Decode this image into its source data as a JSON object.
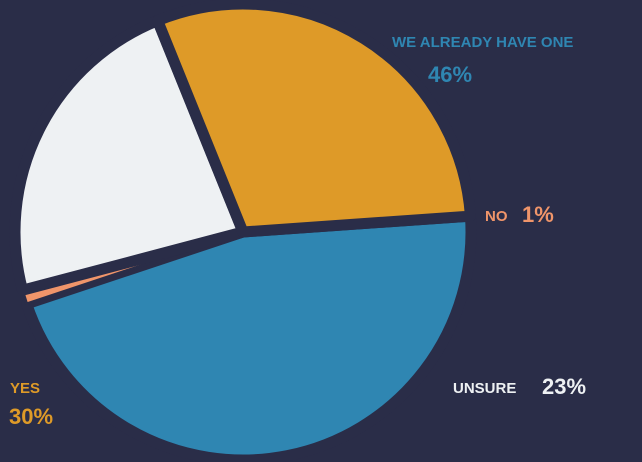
{
  "colors": {
    "background": "#2a2d48",
    "we_already_have_one": "#2f86b2",
    "no": "#f0956a",
    "unsure": "#eef1f3",
    "yes": "#de9a28"
  },
  "chart_data": {
    "type": "pie",
    "title": "",
    "slices": [
      {
        "label": "WE ALREADY HAVE ONE",
        "value": 46,
        "display": "46%",
        "color": "#2f86b2"
      },
      {
        "label": "NO",
        "value": 1,
        "display": "1%",
        "color": "#f0956a"
      },
      {
        "label": "UNSURE",
        "value": 23,
        "display": "23%",
        "color": "#eef1f3"
      },
      {
        "label": "YES",
        "value": 30,
        "display": "30%",
        "color": "#de9a28"
      }
    ]
  }
}
